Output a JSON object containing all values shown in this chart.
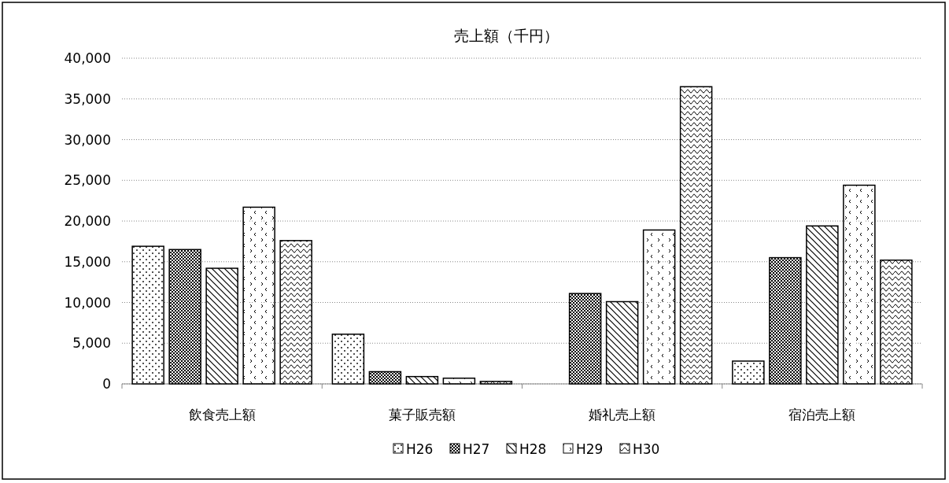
{
  "chart_data": {
    "type": "bar",
    "title": "売上額（千円）",
    "categories": [
      "飲食売上額",
      "菓子販売額",
      "婚礼売上額",
      "宿泊売上額"
    ],
    "series": [
      {
        "name": "H26",
        "color": "#000000",
        "values": [
          16900,
          6100,
          0,
          2800
        ]
      },
      {
        "name": "H27",
        "color": "#000000",
        "values": [
          16500,
          1500,
          11100,
          15500
        ]
      },
      {
        "name": "H28",
        "color": "#000000",
        "values": [
          14200,
          900,
          10100,
          19400
        ]
      },
      {
        "name": "H29",
        "color": "#000000",
        "values": [
          21700,
          700,
          18900,
          24400
        ]
      },
      {
        "name": "H30",
        "color": "#000000",
        "values": [
          17600,
          300,
          36500,
          15200
        ]
      }
    ],
    "ylim": [
      0,
      40000
    ],
    "yticks": [
      {
        "value": 0,
        "label": "0"
      },
      {
        "value": 5000,
        "label": "5,000"
      },
      {
        "value": 10000,
        "label": "10,000"
      },
      {
        "value": 15000,
        "label": "15,000"
      },
      {
        "value": 20000,
        "label": "20,000"
      },
      {
        "value": 25000,
        "label": "25,000"
      },
      {
        "value": 30000,
        "label": "30,000"
      },
      {
        "value": 35000,
        "label": "35,000"
      },
      {
        "value": 40000,
        "label": "40,000"
      }
    ],
    "grid": "y",
    "legend": "bottom"
  }
}
